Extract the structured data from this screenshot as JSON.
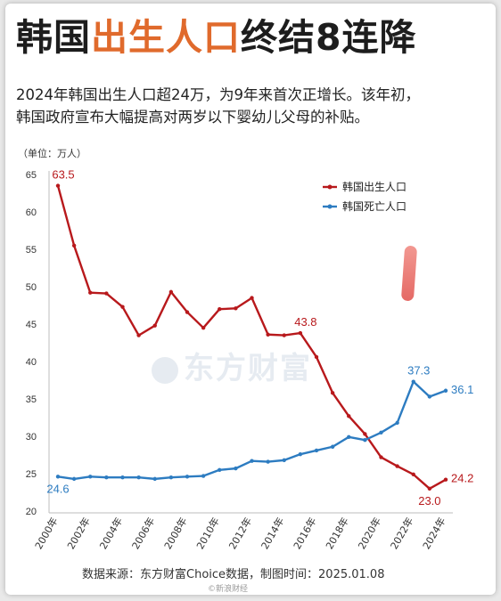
{
  "header": {
    "title_part1": "韩国",
    "title_highlight": "出生人口",
    "title_part2": "终结8连降",
    "subtitle_line1": "2024年韩国出生人口超24万，为9年来首次正增长。该年初，",
    "subtitle_line2": "韩国政府宣布大幅提高对两岁以下婴幼儿父母的补贴。"
  },
  "unit_label": "（单位：万人）",
  "footer": {
    "source": "数据来源：东方财富Choice数据，制图时间：2025.01.08",
    "stamp": "©新浪财经"
  },
  "watermark": "东方财富",
  "colors": {
    "births": "#b8191c",
    "deaths": "#2d7cc1",
    "title_accent": "#e06a2c"
  },
  "chart_data": {
    "type": "line",
    "x": [
      2000,
      2001,
      2002,
      2003,
      2004,
      2005,
      2006,
      2007,
      2008,
      2009,
      2010,
      2011,
      2012,
      2013,
      2014,
      2015,
      2016,
      2017,
      2018,
      2019,
      2020,
      2021,
      2022,
      2023,
      2024
    ],
    "x_tick_labels": [
      "2000年",
      "2002年",
      "2004年",
      "2006年",
      "2008年",
      "2010年",
      "2012年",
      "2014年",
      "2016年",
      "2018年",
      "2020年",
      "2022年",
      "2024年"
    ],
    "x_ticks": [
      2000,
      2002,
      2004,
      2006,
      2008,
      2010,
      2012,
      2014,
      2016,
      2018,
      2020,
      2022,
      2024
    ],
    "ylim": [
      20,
      65
    ],
    "y_ticks": [
      20,
      25,
      30,
      35,
      40,
      45,
      50,
      55,
      60,
      65
    ],
    "legend_position": "top-right",
    "series": [
      {
        "name": "韩国出生人口",
        "color": "#b8191c",
        "values": [
          63.5,
          55.5,
          49.2,
          49.1,
          47.3,
          43.5,
          44.8,
          49.3,
          46.6,
          44.5,
          47.0,
          47.1,
          48.5,
          43.6,
          43.5,
          43.8,
          40.6,
          35.8,
          32.7,
          30.3,
          27.2,
          26.0,
          24.9,
          23.0,
          24.2
        ],
        "labels": [
          {
            "index": 0,
            "text": "63.5",
            "pos": "above"
          },
          {
            "index": 15,
            "text": "43.8",
            "pos": "above"
          },
          {
            "index": 23,
            "text": "23.0",
            "pos": "below"
          },
          {
            "index": 24,
            "text": "24.2",
            "pos": "right"
          }
        ]
      },
      {
        "name": "韩国死亡人口",
        "color": "#2d7cc1",
        "values": [
          24.6,
          24.3,
          24.6,
          24.5,
          24.5,
          24.5,
          24.3,
          24.5,
          24.6,
          24.7,
          25.5,
          25.7,
          26.7,
          26.6,
          26.8,
          27.6,
          28.1,
          28.6,
          29.9,
          29.5,
          30.5,
          31.8,
          37.3,
          35.3,
          36.1
        ],
        "labels": [
          {
            "index": 0,
            "text": "24.6",
            "pos": "below"
          },
          {
            "index": 22,
            "text": "37.3",
            "pos": "above"
          },
          {
            "index": 24,
            "text": "36.1",
            "pos": "right"
          }
        ]
      }
    ]
  }
}
